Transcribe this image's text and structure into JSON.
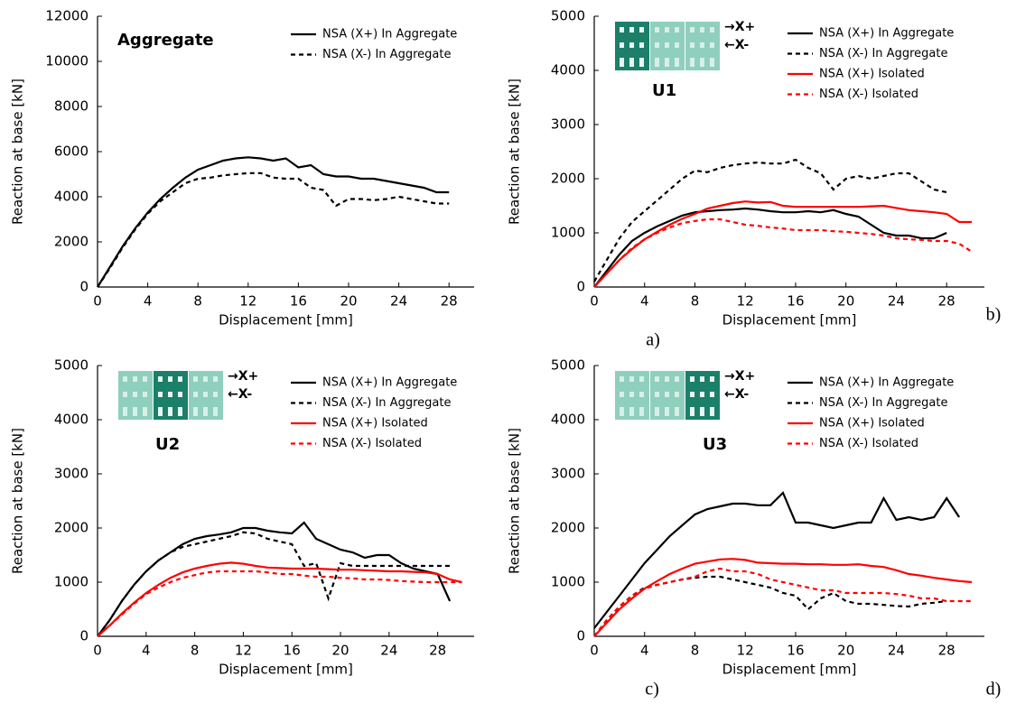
{
  "chart_data": [
    {
      "type": "line",
      "panel_label": "a)",
      "annotation": "Aggregate",
      "x_label": "Displacement [mm]",
      "y_label": "Reaction at base [kN]",
      "x": [
        0,
        1,
        2,
        3,
        4,
        5,
        6,
        7,
        8,
        9,
        10,
        11,
        12,
        13,
        14,
        15,
        16,
        17,
        18,
        19,
        20,
        21,
        22,
        23,
        24,
        25,
        26,
        27,
        28
      ],
      "series": [
        {
          "name": "NSA (X+) In Aggregate",
          "color": "#000000",
          "linestyle": "solid",
          "values": [
            0,
            900,
            1800,
            2600,
            3300,
            3900,
            4400,
            4850,
            5200,
            5400,
            5600,
            5700,
            5750,
            5700,
            5600,
            5700,
            5300,
            5400,
            5000,
            4900,
            4900,
            4800,
            4800,
            4700,
            4600,
            4500,
            4400,
            4200,
            4200
          ]
        },
        {
          "name": "NSA (X-) In Aggregate",
          "color": "#000000",
          "linestyle": "dashed",
          "values": [
            0,
            850,
            1750,
            2550,
            3250,
            3800,
            4200,
            4600,
            4800,
            4850,
            4950,
            5000,
            5050,
            5050,
            4850,
            4800,
            4800,
            4400,
            4300,
            3600,
            3900,
            3900,
            3850,
            3900,
            4000,
            3900,
            3800,
            3700,
            3700
          ]
        }
      ],
      "xlim": [
        0,
        30
      ],
      "ylim": [
        0,
        12000
      ],
      "xticks": [
        0,
        4,
        8,
        12,
        16,
        20,
        24,
        28
      ],
      "yticks": [
        0,
        2000,
        4000,
        6000,
        8000,
        10000,
        12000
      ],
      "legend": "upper right"
    },
    {
      "type": "line",
      "panel_label": "b)",
      "annotation": "U1",
      "arrow_labels": [
        "→X+",
        "←X-"
      ],
      "x_label": "Displacement [mm]",
      "y_label": "Reaction at base [kN]",
      "x": [
        0,
        1,
        2,
        3,
        4,
        5,
        6,
        7,
        8,
        9,
        10,
        11,
        12,
        13,
        14,
        15,
        16,
        17,
        18,
        19,
        20,
        21,
        22,
        23,
        24,
        25,
        26,
        27,
        28,
        29,
        30
      ],
      "series": [
        {
          "name": "NSA (X+) In Aggregate",
          "color": "#000000",
          "linestyle": "solid",
          "values": [
            0,
            300,
            600,
            850,
            1000,
            1120,
            1220,
            1320,
            1380,
            1400,
            1420,
            1430,
            1450,
            1430,
            1400,
            1380,
            1380,
            1400,
            1380,
            1420,
            1350,
            1300,
            1150,
            1000,
            950,
            950,
            900,
            900,
            1000,
            null,
            null
          ]
        },
        {
          "name": "NSA (X-) In Aggregate",
          "color": "#000000",
          "linestyle": "dashed",
          "values": [
            100,
            500,
            900,
            1200,
            1400,
            1600,
            1800,
            2000,
            2150,
            2120,
            2200,
            2250,
            2280,
            2300,
            2280,
            2280,
            2350,
            2200,
            2100,
            1800,
            2000,
            2050,
            2000,
            2050,
            2100,
            2100,
            1950,
            1800,
            1750,
            null,
            null
          ]
        },
        {
          "name": "NSA (X+) Isolated",
          "color": "#ff0000",
          "linestyle": "solid",
          "values": [
            0,
            250,
            500,
            700,
            880,
            1020,
            1150,
            1260,
            1350,
            1450,
            1500,
            1550,
            1580,
            1560,
            1570,
            1500,
            1480,
            1480,
            1480,
            1480,
            1480,
            1480,
            1490,
            1500,
            1460,
            1420,
            1400,
            1380,
            1350,
            1200,
            1200
          ]
        },
        {
          "name": "NSA (X-) Isolated",
          "color": "#ff0000",
          "linestyle": "dashed",
          "values": [
            0,
            250,
            500,
            720,
            880,
            1000,
            1100,
            1180,
            1220,
            1250,
            1250,
            1200,
            1150,
            1130,
            1100,
            1080,
            1050,
            1050,
            1050,
            1030,
            1020,
            1000,
            980,
            950,
            900,
            880,
            870,
            850,
            850,
            800,
            650
          ]
        }
      ],
      "xlim": [
        0,
        31
      ],
      "ylim": [
        0,
        5000
      ],
      "xticks": [
        0,
        4,
        8,
        12,
        16,
        20,
        24,
        28
      ],
      "yticks": [
        0,
        1000,
        2000,
        3000,
        4000,
        5000
      ],
      "legend": "upper right"
    },
    {
      "type": "line",
      "panel_label": "c)",
      "annotation": "U2",
      "arrow_labels": [
        "→X+",
        "←X-"
      ],
      "x_label": "Displacement [mm]",
      "y_label": "Reaction at base [kN]",
      "x": [
        0,
        1,
        2,
        3,
        4,
        5,
        6,
        7,
        8,
        9,
        10,
        11,
        12,
        13,
        14,
        15,
        16,
        17,
        18,
        19,
        20,
        21,
        22,
        23,
        24,
        25,
        26,
        27,
        28,
        29,
        30
      ],
      "series": [
        {
          "name": "NSA (X+) In Aggregate",
          "color": "#000000",
          "linestyle": "solid",
          "values": [
            0,
            300,
            650,
            950,
            1200,
            1400,
            1550,
            1700,
            1800,
            1850,
            1880,
            1920,
            2000,
            2000,
            1950,
            1920,
            1900,
            2100,
            1800,
            1700,
            1600,
            1550,
            1450,
            1500,
            1500,
            1350,
            1250,
            1200,
            1150,
            650,
            null
          ]
        },
        {
          "name": "NSA (X-) In Aggregate",
          "color": "#000000",
          "linestyle": "dashed",
          "values": [
            0,
            300,
            650,
            950,
            1200,
            1400,
            1550,
            1650,
            1700,
            1750,
            1800,
            1850,
            1920,
            1900,
            1800,
            1750,
            1700,
            1300,
            1350,
            700,
            1350,
            1300,
            1300,
            1300,
            1300,
            1300,
            1300,
            1300,
            1300,
            1300,
            null
          ]
        },
        {
          "name": "NSA (X+) Isolated",
          "color": "#ff0000",
          "linestyle": "solid",
          "values": [
            0,
            200,
            420,
            620,
            800,
            950,
            1080,
            1180,
            1250,
            1300,
            1340,
            1360,
            1340,
            1300,
            1270,
            1260,
            1250,
            1250,
            1250,
            1240,
            1230,
            1230,
            1220,
            1210,
            1200,
            1200,
            1190,
            1180,
            1150,
            1050,
            1000
          ]
        },
        {
          "name": "NSA (X-) Isolated",
          "color": "#ff0000",
          "linestyle": "dashed",
          "values": [
            0,
            200,
            400,
            600,
            780,
            900,
            1000,
            1080,
            1130,
            1180,
            1200,
            1200,
            1200,
            1200,
            1180,
            1150,
            1150,
            1120,
            1100,
            1100,
            1080,
            1070,
            1050,
            1050,
            1040,
            1020,
            1010,
            1000,
            1000,
            1000,
            1000
          ]
        }
      ],
      "xlim": [
        0,
        31
      ],
      "ylim": [
        0,
        5000
      ],
      "xticks": [
        0,
        4,
        8,
        12,
        16,
        20,
        24,
        28
      ],
      "yticks": [
        0,
        1000,
        2000,
        3000,
        4000,
        5000
      ],
      "legend": "upper right"
    },
    {
      "type": "line",
      "panel_label": "d)",
      "annotation": "U3",
      "arrow_labels": [
        "→X+",
        "←X-"
      ],
      "x_label": "Displacement [mm]",
      "y_label": "Reaction at base [kN]",
      "x": [
        0,
        1,
        2,
        3,
        4,
        5,
        6,
        7,
        8,
        9,
        10,
        11,
        12,
        13,
        14,
        15,
        16,
        17,
        18,
        19,
        20,
        21,
        22,
        23,
        24,
        25,
        26,
        27,
        28,
        29,
        30
      ],
      "series": [
        {
          "name": "NSA (X+) In Aggregate",
          "color": "#000000",
          "linestyle": "solid",
          "values": [
            150,
            450,
            750,
            1050,
            1350,
            1600,
            1850,
            2050,
            2250,
            2350,
            2400,
            2450,
            2450,
            2420,
            2420,
            2650,
            2100,
            2100,
            2050,
            2000,
            2050,
            2100,
            2100,
            2550,
            2150,
            2200,
            2150,
            2200,
            2550,
            2200,
            null
          ]
        },
        {
          "name": "NSA (X-) In Aggregate",
          "color": "#000000",
          "linestyle": "dashed",
          "values": [
            0,
            300,
            550,
            750,
            900,
            950,
            1000,
            1050,
            1080,
            1100,
            1100,
            1050,
            1000,
            950,
            900,
            800,
            750,
            500,
            700,
            800,
            650,
            600,
            600,
            580,
            560,
            550,
            600,
            620,
            650,
            null,
            null
          ]
        },
        {
          "name": "NSA (X+) Isolated",
          "color": "#ff0000",
          "linestyle": "solid",
          "values": [
            0,
            250,
            500,
            700,
            880,
            1020,
            1150,
            1250,
            1340,
            1380,
            1420,
            1430,
            1410,
            1360,
            1350,
            1340,
            1340,
            1330,
            1330,
            1320,
            1320,
            1330,
            1300,
            1280,
            1220,
            1150,
            1120,
            1080,
            1050,
            1020,
            1000
          ]
        },
        {
          "name": "NSA (X-) Isolated",
          "color": "#ff0000",
          "linestyle": "dashed",
          "values": [
            0,
            300,
            550,
            750,
            880,
            950,
            1000,
            1050,
            1100,
            1200,
            1250,
            1200,
            1200,
            1150,
            1050,
            1000,
            950,
            900,
            850,
            850,
            800,
            800,
            800,
            800,
            780,
            750,
            700,
            700,
            650,
            650,
            650
          ]
        }
      ],
      "xlim": [
        0,
        31
      ],
      "ylim": [
        0,
        5000
      ],
      "xticks": [
        0,
        4,
        8,
        12,
        16,
        20,
        24,
        28
      ],
      "yticks": [
        0,
        1000,
        2000,
        3000,
        4000,
        5000
      ],
      "legend": "upper right"
    }
  ]
}
